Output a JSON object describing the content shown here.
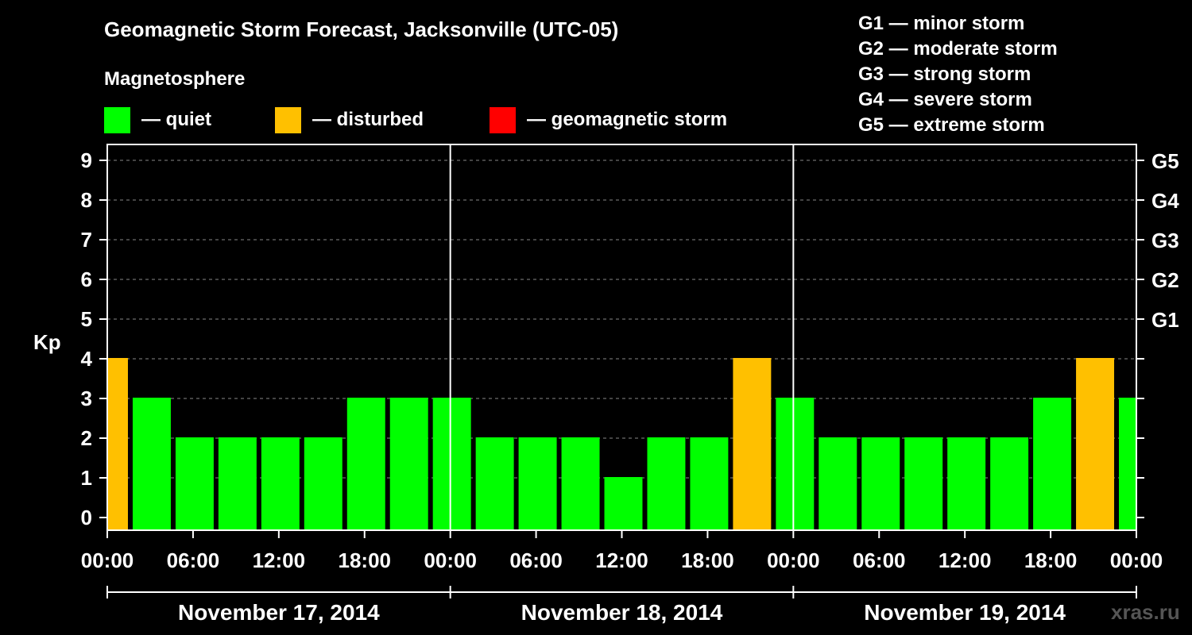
{
  "title": "Geomagnetic Storm Forecast, Jacksonville (UTC-05)",
  "subtitle": "Magnetosphere",
  "legend": [
    {
      "label": "— quiet",
      "color": "#00ff00"
    },
    {
      "label": "— disturbed",
      "color": "#ffc000"
    },
    {
      "label": "— geomagnetic storm",
      "color": "#ff0000"
    }
  ],
  "storm_levels": [
    "G1 — minor storm",
    "G2 — moderate storm",
    "G3 — strong storm",
    "G4 — severe storm",
    "G5 — extreme storm"
  ],
  "watermark": "xras.ru",
  "chart_data": {
    "type": "bar",
    "ylabel": "Kp",
    "ylim": [
      0,
      9
    ],
    "yticks": [
      0,
      1,
      2,
      3,
      4,
      5,
      6,
      7,
      8,
      9
    ],
    "right_axis": [
      {
        "kp": 5,
        "label": "G1"
      },
      {
        "kp": 6,
        "label": "G2"
      },
      {
        "kp": 7,
        "label": "G3"
      },
      {
        "kp": 8,
        "label": "G4"
      },
      {
        "kp": 9,
        "label": "G5"
      }
    ],
    "xticks": [
      "00:00",
      "06:00",
      "12:00",
      "18:00",
      "00:00",
      "06:00",
      "12:00",
      "18:00",
      "00:00",
      "06:00",
      "12:00",
      "18:00",
      "00:00"
    ],
    "days": [
      "November 17, 2014",
      "November 18, 2014",
      "November 19, 2014"
    ],
    "grid": true,
    "colors": {
      "quiet": "#00ff00",
      "disturbed": "#ffc000",
      "storm": "#ff0000"
    },
    "values": [
      4,
      3,
      2,
      2,
      2,
      2,
      3,
      3,
      3,
      2,
      2,
      2,
      1,
      2,
      2,
      4,
      3,
      2,
      2,
      2,
      2,
      2,
      3,
      4,
      3
    ]
  }
}
